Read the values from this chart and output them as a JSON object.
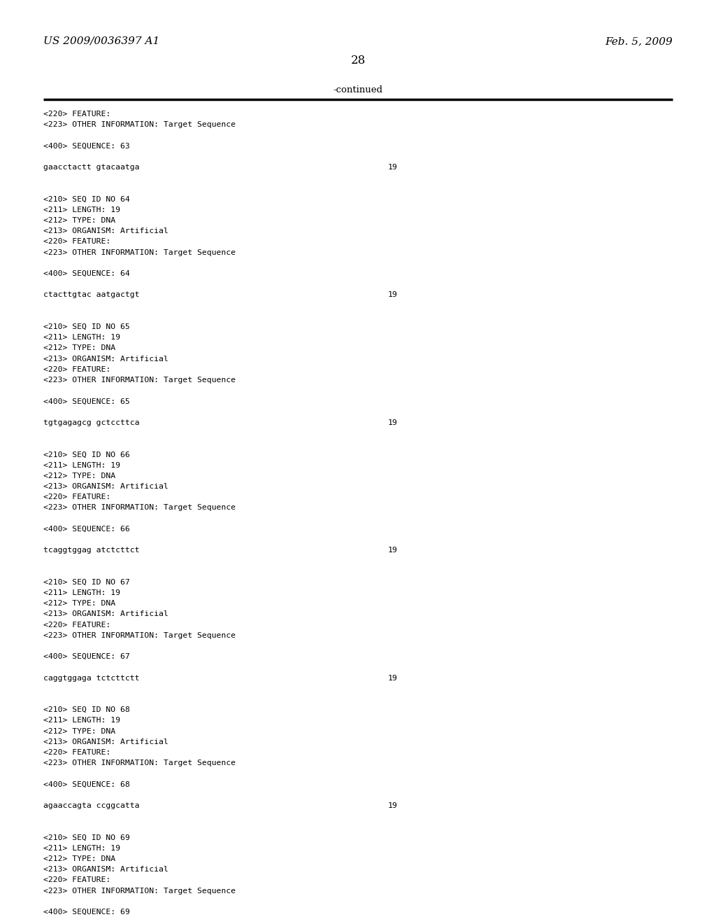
{
  "header_left": "US 2009/0036397 A1",
  "header_right": "Feb. 5, 2009",
  "page_number": "28",
  "continued_text": "-continued",
  "background_color": "#ffffff",
  "text_color": "#000000",
  "content": [
    {
      "text": "<220> FEATURE:",
      "type": "normal"
    },
    {
      "text": "<223> OTHER INFORMATION: Target Sequence",
      "type": "normal"
    },
    {
      "text": "",
      "type": "blank"
    },
    {
      "text": "<400> SEQUENCE: 63",
      "type": "normal"
    },
    {
      "text": "",
      "type": "blank"
    },
    {
      "text": "gaacctactt gtacaatga",
      "type": "seq",
      "num": "19"
    },
    {
      "text": "",
      "type": "blank"
    },
    {
      "text": "",
      "type": "blank"
    },
    {
      "text": "<210> SEQ ID NO 64",
      "type": "normal"
    },
    {
      "text": "<211> LENGTH: 19",
      "type": "normal"
    },
    {
      "text": "<212> TYPE: DNA",
      "type": "normal"
    },
    {
      "text": "<213> ORGANISM: Artificial",
      "type": "normal"
    },
    {
      "text": "<220> FEATURE:",
      "type": "normal"
    },
    {
      "text": "<223> OTHER INFORMATION: Target Sequence",
      "type": "normal"
    },
    {
      "text": "",
      "type": "blank"
    },
    {
      "text": "<400> SEQUENCE: 64",
      "type": "normal"
    },
    {
      "text": "",
      "type": "blank"
    },
    {
      "text": "ctacttgtac aatgactgt",
      "type": "seq",
      "num": "19"
    },
    {
      "text": "",
      "type": "blank"
    },
    {
      "text": "",
      "type": "blank"
    },
    {
      "text": "<210> SEQ ID NO 65",
      "type": "normal"
    },
    {
      "text": "<211> LENGTH: 19",
      "type": "normal"
    },
    {
      "text": "<212> TYPE: DNA",
      "type": "normal"
    },
    {
      "text": "<213> ORGANISM: Artificial",
      "type": "normal"
    },
    {
      "text": "<220> FEATURE:",
      "type": "normal"
    },
    {
      "text": "<223> OTHER INFORMATION: Target Sequence",
      "type": "normal"
    },
    {
      "text": "",
      "type": "blank"
    },
    {
      "text": "<400> SEQUENCE: 65",
      "type": "normal"
    },
    {
      "text": "",
      "type": "blank"
    },
    {
      "text": "tgtgagagcg gctccttca",
      "type": "seq",
      "num": "19"
    },
    {
      "text": "",
      "type": "blank"
    },
    {
      "text": "",
      "type": "blank"
    },
    {
      "text": "<210> SEQ ID NO 66",
      "type": "normal"
    },
    {
      "text": "<211> LENGTH: 19",
      "type": "normal"
    },
    {
      "text": "<212> TYPE: DNA",
      "type": "normal"
    },
    {
      "text": "<213> ORGANISM: Artificial",
      "type": "normal"
    },
    {
      "text": "<220> FEATURE:",
      "type": "normal"
    },
    {
      "text": "<223> OTHER INFORMATION: Target Sequence",
      "type": "normal"
    },
    {
      "text": "",
      "type": "blank"
    },
    {
      "text": "<400> SEQUENCE: 66",
      "type": "normal"
    },
    {
      "text": "",
      "type": "blank"
    },
    {
      "text": "tcaggtggag atctcttct",
      "type": "seq",
      "num": "19"
    },
    {
      "text": "",
      "type": "blank"
    },
    {
      "text": "",
      "type": "blank"
    },
    {
      "text": "<210> SEQ ID NO 67",
      "type": "normal"
    },
    {
      "text": "<211> LENGTH: 19",
      "type": "normal"
    },
    {
      "text": "<212> TYPE: DNA",
      "type": "normal"
    },
    {
      "text": "<213> ORGANISM: Artificial",
      "type": "normal"
    },
    {
      "text": "<220> FEATURE:",
      "type": "normal"
    },
    {
      "text": "<223> OTHER INFORMATION: Target Sequence",
      "type": "normal"
    },
    {
      "text": "",
      "type": "blank"
    },
    {
      "text": "<400> SEQUENCE: 67",
      "type": "normal"
    },
    {
      "text": "",
      "type": "blank"
    },
    {
      "text": "caggtggaga tctcttctt",
      "type": "seq",
      "num": "19"
    },
    {
      "text": "",
      "type": "blank"
    },
    {
      "text": "",
      "type": "blank"
    },
    {
      "text": "<210> SEQ ID NO 68",
      "type": "normal"
    },
    {
      "text": "<211> LENGTH: 19",
      "type": "normal"
    },
    {
      "text": "<212> TYPE: DNA",
      "type": "normal"
    },
    {
      "text": "<213> ORGANISM: Artificial",
      "type": "normal"
    },
    {
      "text": "<220> FEATURE:",
      "type": "normal"
    },
    {
      "text": "<223> OTHER INFORMATION: Target Sequence",
      "type": "normal"
    },
    {
      "text": "",
      "type": "blank"
    },
    {
      "text": "<400> SEQUENCE: 68",
      "type": "normal"
    },
    {
      "text": "",
      "type": "blank"
    },
    {
      "text": "agaaccagta ccggcatta",
      "type": "seq",
      "num": "19"
    },
    {
      "text": "",
      "type": "blank"
    },
    {
      "text": "",
      "type": "blank"
    },
    {
      "text": "<210> SEQ ID NO 69",
      "type": "normal"
    },
    {
      "text": "<211> LENGTH: 19",
      "type": "normal"
    },
    {
      "text": "<212> TYPE: DNA",
      "type": "normal"
    },
    {
      "text": "<213> ORGANISM: Artificial",
      "type": "normal"
    },
    {
      "text": "<220> FEATURE:",
      "type": "normal"
    },
    {
      "text": "<223> OTHER INFORMATION: Target Sequence",
      "type": "normal"
    },
    {
      "text": "",
      "type": "blank"
    },
    {
      "text": "<400> SEQUENCE: 69",
      "type": "normal"
    }
  ]
}
